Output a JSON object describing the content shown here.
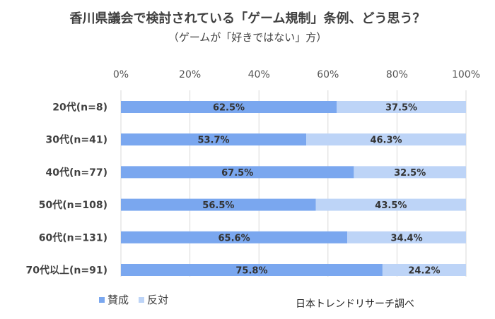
{
  "chart_data": {
    "type": "bar",
    "orientation": "horizontal",
    "stacked": true,
    "percent_stacked": true,
    "title": "香川県議会で検討されている「ゲーム規制」条例、どう思う？",
    "subtitle": "（ゲームが「好きではない」方）",
    "categories": [
      "20代(n=8)",
      "30代(n=41)",
      "40代(n=77)",
      "50代(n=108)",
      "60代(n=131)",
      "70代以上(n=91)"
    ],
    "series": [
      {
        "name": "賛成",
        "color": "#7aa7ef",
        "values": [
          62.5,
          53.7,
          67.5,
          56.5,
          65.6,
          75.8
        ],
        "labels": [
          "62.5%",
          "53.7%",
          "67.5%",
          "56.5%",
          "65.6%",
          "75.8%"
        ]
      },
      {
        "name": "反対",
        "color": "#bdd4f7",
        "values": [
          37.5,
          46.3,
          32.5,
          43.5,
          34.4,
          24.2
        ],
        "labels": [
          "37.5%",
          "46.3%",
          "32.5%",
          "43.5%",
          "34.4%",
          "24.2%"
        ]
      }
    ],
    "xlim": [
      0,
      100
    ],
    "xticks": [
      "0%",
      "20%",
      "40%",
      "60%",
      "80%",
      "100%"
    ],
    "grid": true,
    "legend_position": "bottom-left",
    "source": "日本トレンドリサーチ調べ"
  }
}
